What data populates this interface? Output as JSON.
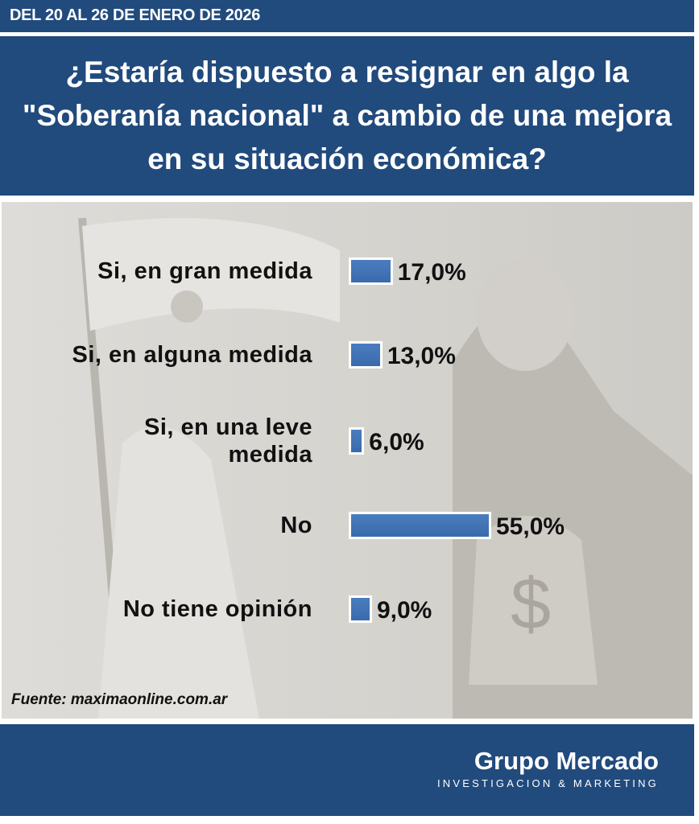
{
  "header": {
    "date_range": "DEL 20 AL 26 DE ENERO DE 2026"
  },
  "chart_data": {
    "type": "bar",
    "orientation": "horizontal",
    "title": "¿Estaría dispuesto a resignar en algo la \"Soberanía nacional\" a cambio de una mejora en su situación económica?",
    "categories": [
      "Si, en gran medida",
      "Si, en alguna medida",
      "Si, en una leve medida",
      "No",
      "No tiene opinión"
    ],
    "values": [
      17.0,
      13.0,
      6.0,
      55.0,
      9.0
    ],
    "value_labels": [
      "17,0%",
      "13,0%",
      "6,0%",
      "55,0%",
      "9,0%"
    ],
    "unit": "%",
    "bar_color": "#3a6aab",
    "xlim": [
      0,
      55
    ],
    "grid": false
  },
  "source": "Fuente: maximaonline.com.ar",
  "footer": {
    "brand": "Grupo Mercado",
    "tagline": "INVESTIGACION & MARKETING"
  },
  "colors": {
    "brand_blue": "#214a7d",
    "background": "#d8d6d2"
  }
}
